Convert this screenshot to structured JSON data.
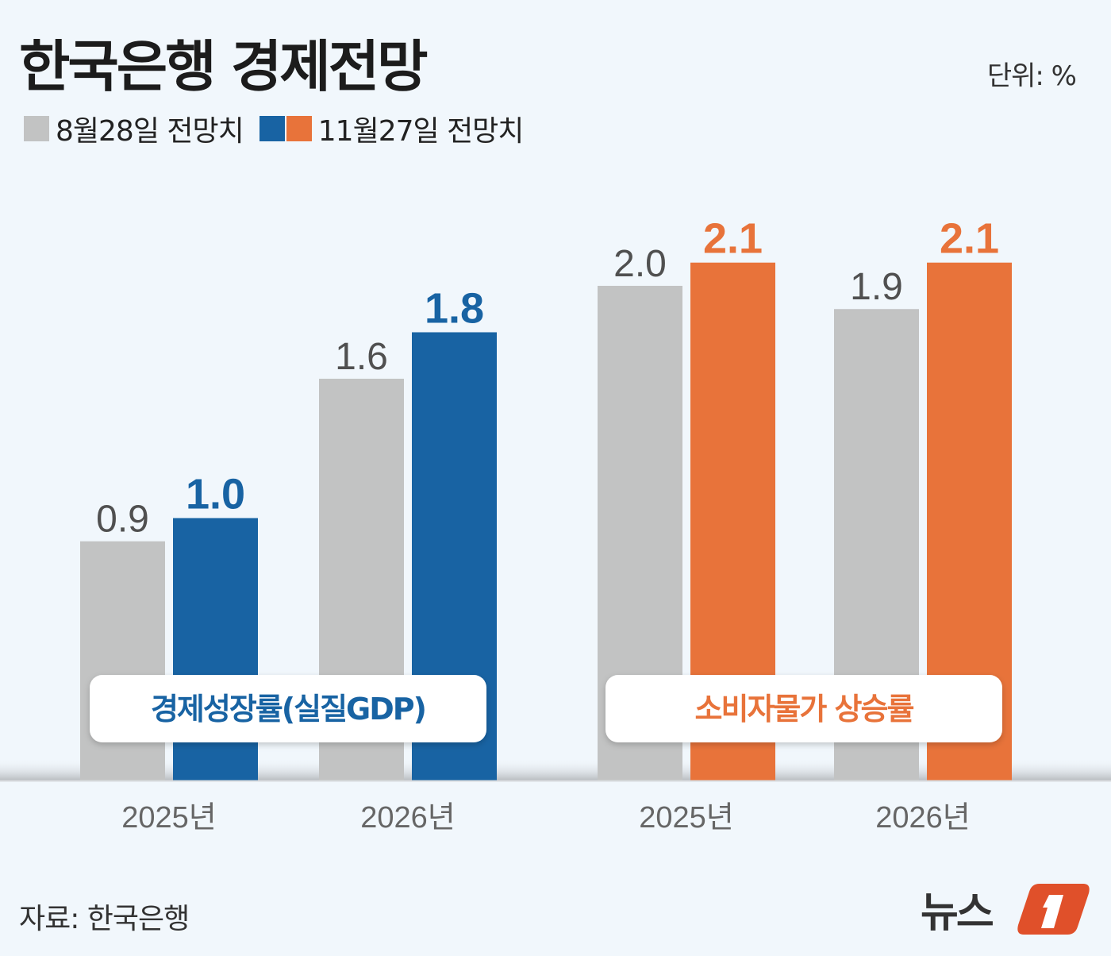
{
  "title": "한국은행 경제전망",
  "unit": "단위: %",
  "legend": [
    {
      "label": "8월28일 전망치",
      "colors": [
        "#c2c3c3"
      ]
    },
    {
      "label": "11월27일 전망치",
      "colors": [
        "#1863a3",
        "#e8733a"
      ]
    }
  ],
  "source": "자료: 한국은행",
  "logo_text": "뉴스1",
  "chart_data": {
    "type": "bar",
    "groups": [
      {
        "label": "경제성장률(실질GDP)",
        "color": "#1863a3",
        "categories": [
          "2025년",
          "2026년"
        ],
        "series": [
          {
            "name": "8월28일 전망치",
            "values": [
              0.9,
              1.6
            ]
          },
          {
            "name": "11월27일 전망치",
            "values": [
              1.0,
              1.8
            ]
          }
        ]
      },
      {
        "label": "소비자물가 상승률",
        "color": "#e8733a",
        "categories": [
          "2025년",
          "2026년"
        ],
        "series": [
          {
            "name": "8월28일 전망치",
            "values": [
              2.0,
              1.9
            ]
          },
          {
            "name": "11월27일 전망치",
            "values": [
              2.1,
              2.1
            ]
          }
        ]
      }
    ],
    "old_color": "#c2c3c3",
    "old_label_color": "#505050",
    "grid": false
  }
}
